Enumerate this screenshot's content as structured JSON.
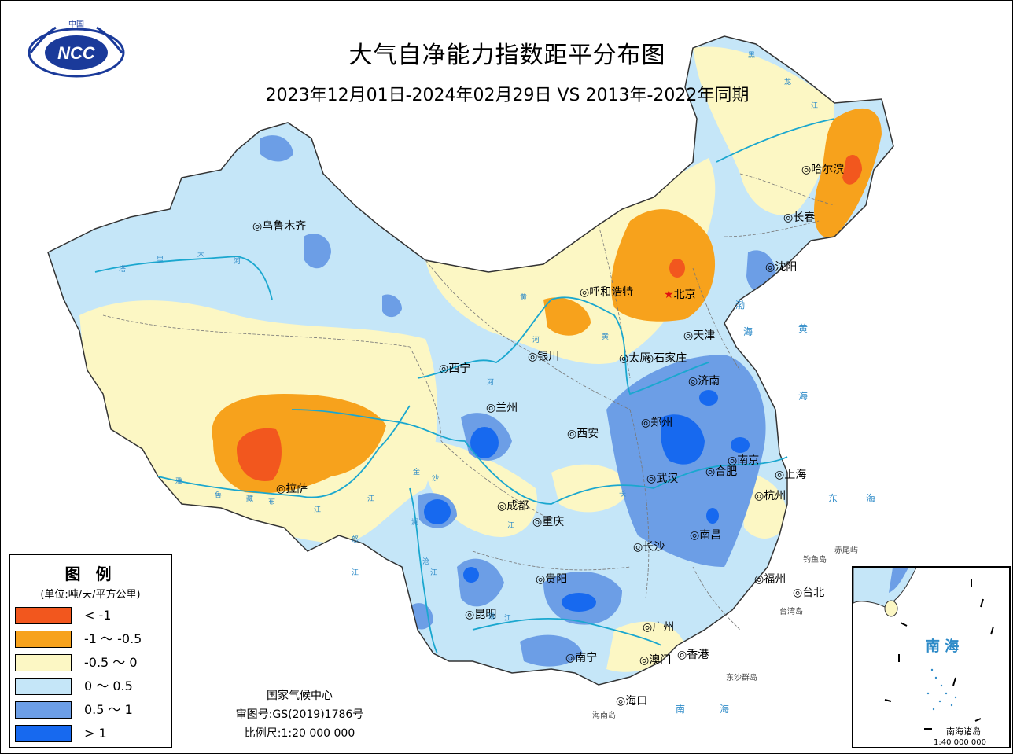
{
  "title": "大气自净能力指数距平分布图",
  "subtitle": "2023年12月01日-2024年02月29日 VS 2013年-2022年同期",
  "logo_text": "NCC",
  "logo_top_text": "中国",
  "legend": {
    "title": "图 例",
    "unit": "(单位:吨/天/平方公里)",
    "items": [
      {
        "label": "< -1",
        "color": "#f2571e"
      },
      {
        "label": "-1 ～ -0.5",
        "color": "#f7a21c"
      },
      {
        "label": "-0.5 ～ 0",
        "color": "#fcf7c4"
      },
      {
        "label": "0 ～ 0.5",
        "color": "#c5e6f8"
      },
      {
        "label": "0.5 ～ 1",
        "color": "#6c9ee6"
      },
      {
        "label": "> 1",
        "color": "#1769ef"
      }
    ]
  },
  "credits": {
    "org": "国家气候中心",
    "approval": "审图号:GS(2019)1786号",
    "scale": "比例尺:1:20 000 000"
  },
  "inset": {
    "sea": "南 海",
    "islands": "南海诸岛",
    "scale": "1:40 000 000"
  },
  "cities": [
    "乌鲁木齐",
    "哈尔滨",
    "长春",
    "沈阳",
    "呼和浩特",
    "北京",
    "天津",
    "银川",
    "太原",
    "石家庄",
    "西宁",
    "济南",
    "兰州",
    "郑州",
    "西安",
    "南京",
    "合肥",
    "上海",
    "拉萨",
    "武汉",
    "成都",
    "杭州",
    "重庆",
    "南昌",
    "长沙",
    "贵阳",
    "福州",
    "台北",
    "昆明",
    "广州",
    "南宁",
    "澳门",
    "香港",
    "海口"
  ],
  "small_labels": [
    "钓鱼岛",
    "赤尾屿",
    "台湾岛",
    "东沙群岛",
    "海南岛"
  ],
  "seas": [
    "渤",
    "海",
    "黄",
    "海",
    "东",
    "海",
    "南",
    "海"
  ],
  "rivers": [
    "塔",
    "里",
    "木",
    "河",
    "黄",
    "河",
    "黄",
    "河",
    "长",
    "江",
    "雅",
    "鲁",
    "藏",
    "布",
    "江",
    "金",
    "沙",
    "江",
    "澜",
    "沧",
    "江",
    "怒",
    "江",
    "珠",
    "江",
    "黑",
    "龙",
    "江"
  ]
}
